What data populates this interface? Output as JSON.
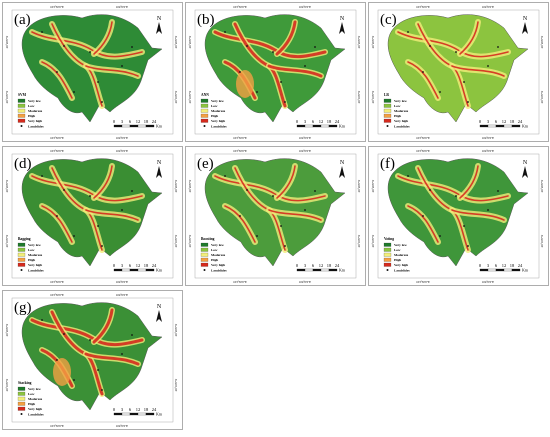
{
  "panels": [
    {
      "label": "(a)",
      "model": "SVM"
    },
    {
      "label": "(b)",
      "model": "ANN"
    },
    {
      "label": "(c)",
      "model": "LR"
    },
    {
      "label": "(d)",
      "model": "Bagging"
    },
    {
      "label": "(e)",
      "model": "Boosting"
    },
    {
      "label": "(f)",
      "model": "Voting"
    },
    {
      "label": "(g)",
      "model": "Stacking"
    }
  ],
  "legend": {
    "items": [
      {
        "label": "Very low",
        "color": "#1f7a2b"
      },
      {
        "label": "Low",
        "color": "#8cc43f"
      },
      {
        "label": "Moderate",
        "color": "#f2ee7a"
      },
      {
        "label": "High",
        "color": "#f3a043"
      },
      {
        "label": "Very high",
        "color": "#d52b1e"
      }
    ],
    "landslides": "Landslides"
  },
  "scale": {
    "ticks": [
      "0",
      "3",
      "6",
      "12",
      "18",
      "24"
    ],
    "unit": "Km"
  },
  "north": "N",
  "coords": {
    "top": [
      "103°50'0\"E",
      "104°0'0\"E"
    ],
    "left": [
      "26°20'0\"N",
      "26°10'0\"N"
    ]
  }
}
